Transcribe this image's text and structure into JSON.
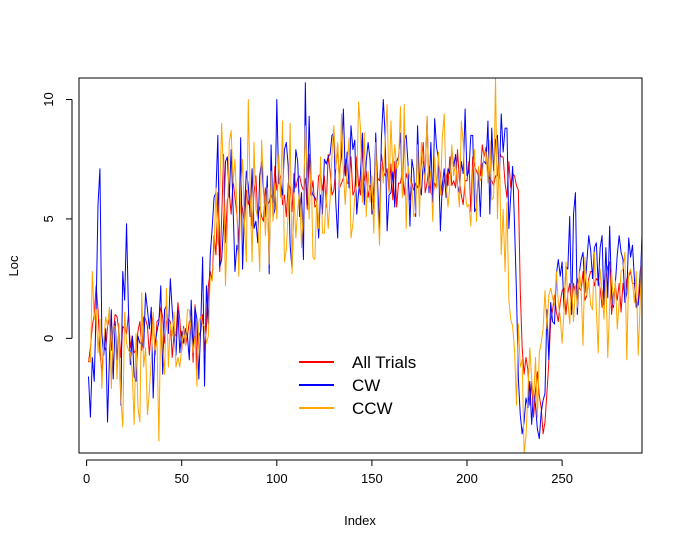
{
  "chart_data": {
    "type": "line",
    "title": "",
    "xlabel": "Index",
    "ylabel": "Loc",
    "xlim": [
      -4,
      292
    ],
    "ylim": [
      -4.8,
      10.9
    ],
    "xticks": [
      0,
      50,
      100,
      150,
      200,
      250
    ],
    "yticks": [
      0,
      5,
      10
    ],
    "grid": false,
    "legend": {
      "position": "bottom-center"
    },
    "x_start": 1,
    "series": [
      {
        "name": "All Trials",
        "color": "#ff0000",
        "values": [
          -1,
          -0.4,
          0.5,
          1.0,
          2.2,
          1.2,
          -0.6,
          -1.4,
          -0.3,
          -0.5,
          0.5,
          0.8,
          -0.5,
          0.2,
          1.0,
          0.9,
          0.3,
          -0.8,
          0.5,
          0.4,
          0.2,
          1.0,
          -0.4,
          0.1,
          -0.6,
          -0.5,
          0.3,
          0.7,
          -0.5,
          0.9,
          0.8,
          0.5,
          -0.7,
          0.4,
          1.0,
          -0.7,
          0.7,
          0.8,
          1.3,
          0.9,
          -0.2,
          0.7,
          0.8,
          0.7,
          -0.8,
          0.2,
          0.1,
          1.5,
          0.8,
          -0.5,
          0.5,
          -0.3,
          0.1,
          0.7,
          0.8,
          -1.0,
          1.4,
          -1.3,
          0.1,
          0.3,
          1.0,
          -0.5,
          0.5,
          2.2,
          2.8,
          2.4,
          4.3,
          3.5,
          6.1,
          2.8,
          5.0,
          7.7,
          4.0,
          5.8,
          6.1,
          5.2,
          6.6,
          5.9,
          5.2,
          4.0,
          5.8,
          5.4,
          4.8,
          6.2,
          5.6,
          6.0,
          4.7,
          6.1,
          6.8,
          5.1,
          5.5,
          5.1,
          4.9,
          6.3,
          5.6,
          5.7,
          6.0,
          5.7,
          7.2,
          6.2,
          6.6,
          6.8,
          5.6,
          6.0,
          5.1,
          6.5,
          6.3,
          5.3,
          6.9,
          6.3,
          6.7,
          6.8,
          6.4,
          6.2,
          6.7,
          5.4,
          7.7,
          6.0,
          6.6,
          5.5,
          5.6,
          6.8,
          6.9,
          6.2,
          6.8,
          5.5,
          7.7,
          7.0,
          6.0,
          6.2,
          7.1,
          8.1,
          6.3,
          6.5,
          6.7,
          7.5,
          6.5,
          6.5,
          7.6,
          6.0,
          6.2,
          7.6,
          6.4,
          6.0,
          8.0,
          6.6,
          7.0,
          5.9,
          6.4,
          5.7,
          6.3,
          7.6,
          6.7,
          6.6,
          7.7,
          7.0,
          6.8,
          7.1,
          6.1,
          7.3,
          5.8,
          7.4,
          5.5,
          6.5,
          6.5,
          7.0,
          6.0,
          6.9,
          6.6,
          5.8,
          6.5,
          6.2,
          6.5,
          6.3,
          6.6,
          7.3,
          8.2,
          6.1,
          6.5,
          7.2,
          6.1,
          5.9,
          6.5,
          6.3,
          7.4,
          6.8,
          6.0,
          6.6,
          6.9,
          6.4,
          7.6,
          6.4,
          6.6,
          6.3,
          7.9,
          6.6,
          6.0,
          5.6,
          6.6,
          6.6,
          7.4,
          5.3,
          7.6,
          7.2,
          7.0,
          6.8,
          6.8,
          8.1,
          7.6,
          8.0,
          6.9,
          6.7,
          6.6,
          6.4,
          6.8,
          6.8,
          7.8,
          7.6,
          7.6,
          6.5,
          5.9,
          7.4,
          6.3,
          6.9,
          6.8,
          6.4,
          6.2,
          2.0,
          -0.4,
          -1.5,
          -0.8,
          -1.3,
          -2.8,
          -1.8,
          -3.3,
          -2.2,
          -1.4,
          -2.4,
          -2.9,
          -4.0,
          -3.5,
          -2.3,
          -1.0,
          0.7,
          1.2,
          1.8,
          1.1,
          0.7,
          1.5,
          2.0,
          2.1,
          1.0,
          1.9,
          2.3,
          1.2,
          2.3,
          1.9,
          2.5,
          2.1,
          2.0,
          2.8,
          1.6,
          1.8,
          2.5,
          2.8,
          2.8,
          2.2,
          2.5,
          2.4,
          2.1,
          1.3,
          2.4,
          2.5,
          3.0,
          3.2,
          1.0,
          1.8,
          2.2,
          1.6,
          2.3,
          1.1,
          2.3,
          1.7,
          2.5,
          2.6,
          2.8,
          2.3,
          2.3,
          1.3,
          1.5,
          2.8,
          3.3,
          2.8
        ]
      },
      {
        "name": "CW",
        "color": "#0000ff",
        "values": [
          -1.6,
          -3.3,
          -0.8,
          -1.8,
          1.2,
          5.6,
          7.1,
          0.2,
          -0.7,
          0.4,
          -3.5,
          -0.8,
          1.2,
          -1.7,
          0.7,
          -0.9,
          0.5,
          -2.8,
          2.8,
          1.6,
          4.8,
          1.2,
          -1.1,
          0.1,
          -1.6,
          -1.8,
          0.1,
          -0.2,
          -0.2,
          -0.4,
          1.9,
          1.2,
          0.4,
          1.3,
          -2.5,
          -0.2,
          0.3,
          0.7,
          2.2,
          -1.5,
          1.2,
          1.4,
          0.2,
          2.5,
          1.2,
          0.1,
          -0.7,
          1.2,
          -0.6,
          0.3,
          -0.2,
          0.4,
          0.1,
          -0.9,
          1.6,
          -0.6,
          1.3,
          0.8,
          -1.7,
          0.5,
          3.4,
          -2.0,
          2.2,
          0.6,
          3.5,
          4.6,
          5.9,
          6.1,
          8.5,
          3.0,
          3.3,
          4.7,
          7.4,
          7.6,
          5.9,
          7.9,
          5.5,
          2.8,
          3.9,
          3.5,
          8.4,
          2.9,
          5.4,
          7.0,
          6.4,
          5.1,
          7.1,
          4.6,
          4.9,
          4.0,
          6.8,
          7.4,
          6.2,
          5.1,
          6.8,
          2.7,
          8.1,
          5.1,
          5.4,
          10.0,
          6.5,
          6.5,
          6.0,
          7.9,
          8.2,
          7.2,
          3.9,
          2.9,
          5.9,
          7.9,
          7.4,
          5.1,
          6.1,
          3.3,
          10.7,
          5.6,
          9.3,
          6.3,
          6.0,
          5.9,
          5.7,
          4.2,
          6.0,
          5.2,
          7.5,
          7.3,
          7.6,
          7.7,
          8.5,
          8.6,
          5.7,
          4.2,
          7.0,
          7.6,
          9.6,
          6.8,
          7.8,
          6.3,
          8.9,
          7.9,
          8.3,
          5.2,
          6.1,
          6.9,
          8.6,
          5.6,
          7.4,
          8.2,
          7.5,
          5.2,
          5.5,
          8.6,
          6.5,
          4.5,
          8.4,
          10.0,
          8.4,
          4.5,
          6.0,
          6.1,
          7.0,
          5.5,
          7.4,
          7.6,
          8.6,
          6.2,
          8.3,
          8.5,
          7.3,
          4.7,
          7.5,
          7.0,
          5.1,
          8.9,
          6.5,
          6.0,
          7.4,
          6.8,
          9.3,
          6.1,
          8.2,
          5.7,
          9.2,
          8.0,
          7.5,
          4.5,
          6.4,
          7.1,
          5.9,
          7.1,
          6.9,
          7.9,
          7.2,
          7.7,
          6.4,
          6.1,
          7.4,
          6.9,
          9.6,
          6.8,
          7.0,
          8.5,
          8.5,
          5.3,
          5.5,
          7.0,
          5.1,
          7.3,
          7.4,
          7.3,
          9.1,
          5.2,
          8.8,
          7.0,
          8.3,
          8.5,
          6.7,
          9.4,
          7.8,
          8.8,
          8.8,
          4.6,
          6.0,
          7.2,
          4.7,
          1.9,
          -1.7,
          -3.2,
          -4.0,
          -3.5,
          -2.5,
          -2.9,
          -1.8,
          -3.6,
          -2.2,
          -2.8,
          -3.8,
          -4.2,
          -3.1,
          -2.6,
          -2.3,
          1.2,
          -0.9,
          1.5,
          0.7,
          0.6,
          2.7,
          3.3,
          2.6,
          3.2,
          1.2,
          3.0,
          2.9,
          5.1,
          1.0,
          5.2,
          6.1,
          1.0,
          2.7,
          3.3,
          3.6,
          1.9,
          3.2,
          4.3,
          3.7,
          2.5,
          3.8,
          4.0,
          2.2,
          3.8,
          4.3,
          1.4,
          3.8,
          1.7,
          4.7,
          1.9,
          1.3,
          2.3,
          3.5,
          4.3,
          3.6,
          3.3,
          1.5,
          1.9,
          4.2,
          3.4,
          3.9,
          2.5,
          1.3,
          1.4,
          2.2,
          4.3,
          3.1,
          2.5
        ]
      },
      {
        "name": "CCW",
        "color": "#ffa500",
        "values": [
          -0.9,
          -1.0,
          2.8,
          0.8,
          1.2,
          -0.6,
          0.8,
          -2.1,
          -0.2,
          0.9,
          0.5,
          1.3,
          -2.1,
          0.5,
          0.5,
          -1.7,
          0.6,
          -2.5,
          -3.7,
          1.1,
          -0.2,
          -0.5,
          -0.6,
          -1.4,
          -3.6,
          0.2,
          -2.9,
          -3.5,
          1.9,
          -1.2,
          -0.4,
          -3.2,
          -2.2,
          -0.9,
          1.1,
          -0.5,
          -0.1,
          -4.3,
          1.1,
          -0.3,
          -1.5,
          2.1,
          -1.2,
          0.6,
          0.1,
          1.1,
          -1.2,
          -0.8,
          -1.2,
          -0.4,
          0.4,
          -0.3,
          1.2,
          1.2,
          0.2,
          -0.6,
          0.1,
          -2.0,
          0.7,
          0.9,
          0.6,
          0.5,
          -0.2,
          0.1,
          2.6,
          2.4,
          3.7,
          6.3,
          3.9,
          6.1,
          9.0,
          6.8,
          2.2,
          4.8,
          8.2,
          8.7,
          6.5,
          7.5,
          5.5,
          2.6,
          6.1,
          7.5,
          4.8,
          3.2,
          10.0,
          6.1,
          3.2,
          8.2,
          5.4,
          5.0,
          2.8,
          8.3,
          6.5,
          4.3,
          6.3,
          3.1,
          7.0,
          4.9,
          6.5,
          5.0,
          7.7,
          5.9,
          9.1,
          3.2,
          3.7,
          5.3,
          9.0,
          2.7,
          6.1,
          4.2,
          5.4,
          6.2,
          3.8,
          5.5,
          8.9,
          6.9,
          5.0,
          7.4,
          3.4,
          3.3,
          5.8,
          4.6,
          7.6,
          4.4,
          4.4,
          6.1,
          4.6,
          5.8,
          7.7,
          8.9,
          7.1,
          8.2,
          6.2,
          9.4,
          6.9,
          5.6,
          7.2,
          8.4,
          4.2,
          4.8,
          5.9,
          6.5,
          9.9,
          8.8,
          5.7,
          8.6,
          5.1,
          7.0,
          5.7,
          6.8,
          4.4,
          8.2,
          5.7,
          3.9,
          7.4,
          6.5,
          8.3,
          9.8,
          6.1,
          9.1,
          7.0,
          8.1,
          7.1,
          7.3,
          9.7,
          5.9,
          9.8,
          4.6,
          7.2,
          6.7,
          6.3,
          5.1,
          5.3,
          8.1,
          5.1,
          8.2,
          7.1,
          6.6,
          9.3,
          6.4,
          7.0,
          4.9,
          7.6,
          6.3,
          7.8,
          6.0,
          8.4,
          9.4,
          6.4,
          5.5,
          6.4,
          8.1,
          6.8,
          7.4,
          6.4,
          5.5,
          9.1,
          8.2,
          6.1,
          5.5,
          5.6,
          4.7,
          6.9,
          7.9,
          4.9,
          7.2,
          6.6,
          6.8,
          7.8,
          7.8,
          6.5,
          8.3,
          5.8,
          5.9,
          10.9,
          5.0,
          7.9,
          3.5,
          5.4,
          2.8,
          5.7,
          1.6,
          0.8,
          0.5,
          -0.5,
          -2.8,
          0.6,
          -1.2,
          -0.9,
          -4.8,
          -4.1,
          -2.3,
          -0.4,
          -1.7,
          -2.6,
          -0.8,
          -3.3,
          -0.6,
          -0.2,
          0.4,
          2.0,
          0.4,
          1.8,
          2.1,
          1.7,
          1.4,
          2.8,
          1.5,
          0.9,
          -0.2,
          1.1,
          3.2,
          1.6,
          0.6,
          2.3,
          0.7,
          2.2,
          1.3,
          2.8,
          2.1,
          -0.3,
          3.4,
          1.8,
          2.4,
          1.4,
          1.2,
          3.6,
          1.2,
          -0.6,
          2.9,
          1.9,
          0.8,
          2.6,
          -0.8,
          1.4,
          2.8,
          1.4,
          2.4,
          0.4,
          1.5,
          2.8,
          2.9,
          3.6,
          -0.9,
          2.7,
          2.9,
          2.4,
          1.5,
          2.8,
          -0.7,
          1.4,
          3.9,
          2.9,
          3.0
        ]
      }
    ]
  }
}
